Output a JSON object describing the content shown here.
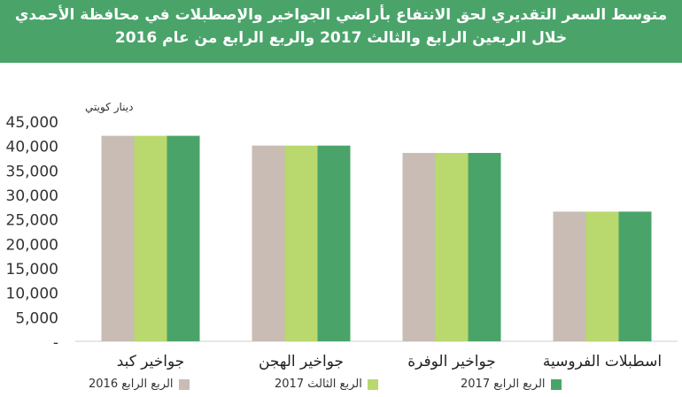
{
  "header": {
    "title_line1": "متوسط السعر التقديري لحق الانتفاع بأراضي الجواخير والإصطبلات في محافظة الأحمدي",
    "title_line2": "خلال الربعين الرابع والثالث 2017 والربع الرابع من عام 2016"
  },
  "chart_data": {
    "type": "bar",
    "title": "",
    "ylabel": "دينار كويتي",
    "xlabel": "",
    "ylim": [
      0,
      45000
    ],
    "yticks": [
      "-",
      "5,000",
      "10,000",
      "15,000",
      "20,000",
      "25,000",
      "30,000",
      "35,000",
      "40,000",
      "45,000"
    ],
    "categories": [
      "جواخير كبد",
      "جواخير الهجن",
      "جواخير الوفرة",
      "اسطبلات الفروسية"
    ],
    "series": [
      {
        "name": "الربع الرابع 2016",
        "color": "#c8bcb4",
        "values": [
          42000,
          40000,
          38500,
          26500
        ]
      },
      {
        "name": "الربع الثالث 2017",
        "color": "#b9d86d",
        "values": [
          42000,
          40000,
          38500,
          26500
        ]
      },
      {
        "name": "الربع الرابع 2017",
        "color": "#4aa46a",
        "values": [
          42000,
          40000,
          38500,
          26500
        ]
      }
    ],
    "grid": false,
    "legend_position": "bottom"
  }
}
